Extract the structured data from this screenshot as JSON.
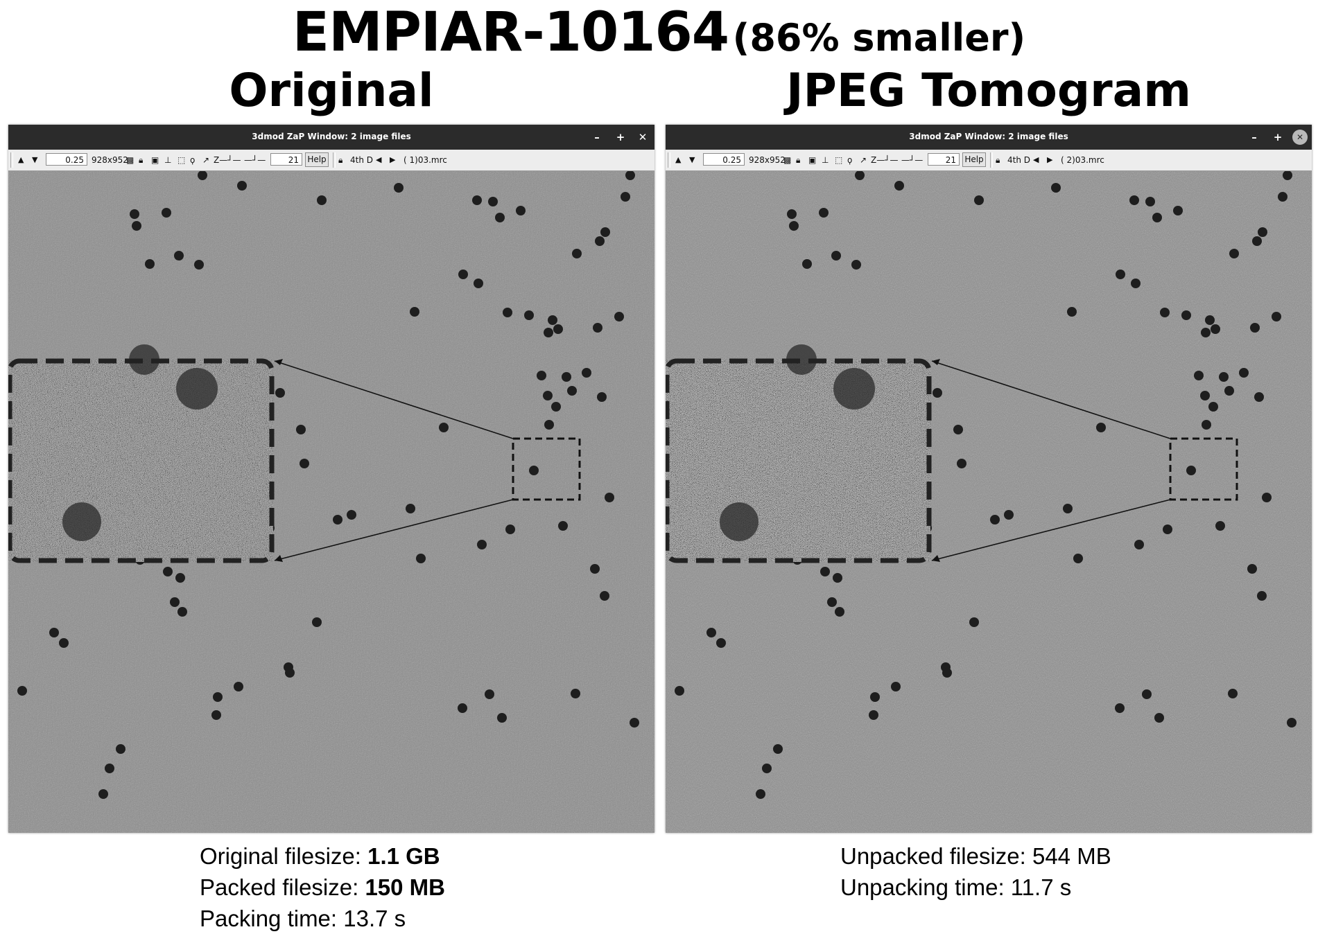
{
  "header": {
    "dataset": "EMPIAR-10164",
    "reduction": "(86% smaller)"
  },
  "panels": [
    {
      "heading": "Original",
      "window_title": "3dmod ZaP Window: 2 image files",
      "window_buttons": [
        "–",
        "+",
        "✕"
      ],
      "toolbar": {
        "zoom": "0.25",
        "size": "928x952",
        "section": "21",
        "help": "Help",
        "fourth_d": "4th D",
        "file": "(  1)03.mrc"
      }
    },
    {
      "heading": "JPEG Tomogram",
      "window_title": "3dmod ZaP Window: 2 image files",
      "window_buttons": [
        "–",
        "+",
        "✕"
      ],
      "toolbar": {
        "zoom": "0.25",
        "size": "928x952",
        "section": "21",
        "help": "Help",
        "fourth_d": "4th D",
        "file": "(  2)03.mrc"
      }
    }
  ],
  "stats": {
    "original": [
      {
        "label": "Original filesize: ",
        "value": "1.1 GB"
      },
      {
        "label": "Packed filesize: ",
        "value": "150 MB"
      },
      {
        "label": "Packing time: 13.7 s",
        "value": ""
      }
    ],
    "jpeg": [
      {
        "label": "Unpacked filesize: 544 MB",
        "value": ""
      },
      {
        "label": "Unpacking time: 11.7 s",
        "value": ""
      }
    ]
  },
  "icons": [
    "up-arrow-icon",
    "down-arrow-icon",
    "checker-icon",
    "lock-icon",
    "box-icon",
    "pin-icon",
    "rubber-band-icon",
    "lasso-icon",
    "arrow-icon",
    "z-slider-icon",
    "lock-icon",
    "prev-icon",
    "next-icon"
  ],
  "colors": {
    "titlebar": "#2b2b2b",
    "toolbar": "#ededed",
    "image_background": "#8e8e8e"
  }
}
